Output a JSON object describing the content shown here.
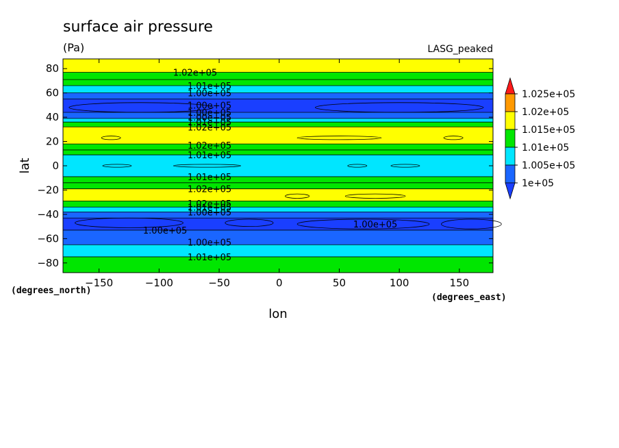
{
  "chart_data": {
    "type": "heatmap",
    "title": "surface air pressure",
    "units": "(Pa)",
    "model": "LASG_peaked",
    "xlabel": "lon",
    "ylabel": "lat",
    "x_units": "(degrees_east)",
    "y_units": "(degrees_north)",
    "xlim": [
      -180,
      178
    ],
    "ylim": [
      -88,
      88
    ],
    "x_ticks": [
      -150,
      -100,
      -50,
      0,
      50,
      100,
      150
    ],
    "x_tick_labels": [
      "−150",
      "−100",
      "−50",
      "0",
      "50",
      "100",
      "150"
    ],
    "y_ticks": [
      80,
      60,
      40,
      20,
      0,
      -20,
      -40,
      -60,
      -80
    ],
    "y_tick_labels": [
      "80",
      "60",
      "40",
      "20",
      "0",
      "−20",
      "−40",
      "−60",
      "−80"
    ],
    "levels": [
      100000,
      100500,
      101000,
      101500,
      102000,
      102500
    ],
    "colorbar": {
      "labels": [
        "1.025e+05",
        "1.02e+05",
        "1.015e+05",
        "1.01e+05",
        "1.005e+05",
        "1e+05"
      ],
      "colors": [
        "#ff1a1a",
        "#ff9900",
        "#ffff00",
        "#00e600",
        "#00e6ff",
        "#1a66ff",
        "#1a3fff"
      ]
    },
    "bands": [
      {
        "lat_top": 88,
        "lat_bottom": 77,
        "value": 101500
      },
      {
        "lat_top": 77,
        "lat_bottom": 71,
        "value": 101000
      },
      {
        "lat_top": 71,
        "lat_bottom": 66,
        "value": 101000
      },
      {
        "lat_top": 66,
        "lat_bottom": 60,
        "value": 100500
      },
      {
        "lat_top": 60,
        "lat_bottom": 55,
        "value": 100000
      },
      {
        "lat_top": 55,
        "lat_bottom": 44,
        "value": 99900
      },
      {
        "lat_top": 44,
        "lat_bottom": 39,
        "value": 100000
      },
      {
        "lat_top": 39,
        "lat_bottom": 36,
        "value": 100500
      },
      {
        "lat_top": 36,
        "lat_bottom": 32,
        "value": 101000
      },
      {
        "lat_top": 32,
        "lat_bottom": 18,
        "value": 101500
      },
      {
        "lat_top": 18,
        "lat_bottom": 13,
        "value": 101000
      },
      {
        "lat_top": 13,
        "lat_bottom": 9,
        "value": 101000
      },
      {
        "lat_top": 9,
        "lat_bottom": -9,
        "value": 100500
      },
      {
        "lat_top": -9,
        "lat_bottom": -14,
        "value": 101000
      },
      {
        "lat_top": -14,
        "lat_bottom": -19,
        "value": 101000
      },
      {
        "lat_top": -19,
        "lat_bottom": -29,
        "value": 101500
      },
      {
        "lat_top": -29,
        "lat_bottom": -34,
        "value": 101000
      },
      {
        "lat_top": -34,
        "lat_bottom": -38,
        "value": 100500
      },
      {
        "lat_top": -38,
        "lat_bottom": -43,
        "value": 100000
      },
      {
        "lat_top": -43,
        "lat_bottom": -53,
        "value": 99900
      },
      {
        "lat_top": -53,
        "lat_bottom": -65,
        "value": 100000
      },
      {
        "lat_top": -65,
        "lat_bottom": -75,
        "value": 100500
      },
      {
        "lat_top": -75,
        "lat_bottom": -88,
        "value": 101000
      }
    ],
    "contour_lines_lat": [
      77,
      71,
      66,
      60,
      55,
      44,
      39,
      36,
      32,
      18,
      13,
      9,
      -9,
      -14,
      -19,
      -29,
      -34,
      -38,
      -43,
      -53,
      -65,
      -75
    ],
    "blobs": [
      {
        "lon": -135,
        "lat": 0,
        "rlon": 12,
        "rlat": 1.2
      },
      {
        "lon": -60,
        "lat": 0,
        "rlon": 28,
        "rlat": 1.2
      },
      {
        "lon": 65,
        "lat": 0,
        "rlon": 8,
        "rlat": 1.2
      },
      {
        "lon": 105,
        "lat": 0,
        "rlon": 12,
        "rlat": 1.2
      },
      {
        "lon": -140,
        "lat": 23,
        "rlon": 8,
        "rlat": 1.5
      },
      {
        "lon": 50,
        "lat": 23,
        "rlon": 35,
        "rlat": 1.5
      },
      {
        "lon": 145,
        "lat": 23,
        "rlon": 8,
        "rlat": 1.5
      },
      {
        "lon": 15,
        "lat": -25,
        "rlon": 10,
        "rlat": 1.8
      },
      {
        "lon": 80,
        "lat": -25,
        "rlon": 25,
        "rlat": 1.8
      },
      {
        "lon": -125,
        "lat": -47,
        "rlon": 45,
        "rlat": 4
      },
      {
        "lon": -25,
        "lat": -47,
        "rlon": 20,
        "rlat": 3
      },
      {
        "lon": 70,
        "lat": -48,
        "rlon": 55,
        "rlat": 4
      },
      {
        "lon": 160,
        "lat": -48,
        "rlon": 25,
        "rlat": 4
      },
      {
        "lon": -115,
        "lat": 48,
        "rlon": 60,
        "rlat": 4
      },
      {
        "lon": 100,
        "lat": 48,
        "rlon": 70,
        "rlat": 4
      }
    ],
    "contour_labels": [
      {
        "text": "1.02e+05",
        "lon": -70,
        "lat": 77
      },
      {
        "text": "1.01e+05",
        "lon": -58,
        "lat": 66
      },
      {
        "text": "1.00e+05",
        "lon": -58,
        "lat": 60
      },
      {
        "text": "1.00e+05",
        "lon": -58,
        "lat": 50
      },
      {
        "text": "1.00e+05",
        "lon": -58,
        "lat": 44
      },
      {
        "text": "1.00e+05",
        "lon": -58,
        "lat": 40
      },
      {
        "text": "1.01e+05",
        "lon": -58,
        "lat": 36
      },
      {
        "text": "1.02e+05",
        "lon": -58,
        "lat": 32
      },
      {
        "text": "1.02e+05",
        "lon": -58,
        "lat": 17
      },
      {
        "text": "1.01e+05",
        "lon": -58,
        "lat": 9
      },
      {
        "text": "1.01e+05",
        "lon": -58,
        "lat": -9
      },
      {
        "text": "1.02e+05",
        "lon": -58,
        "lat": -19
      },
      {
        "text": "1.02e+05",
        "lon": -58,
        "lat": -31
      },
      {
        "text": "1.01e+05",
        "lon": -58,
        "lat": -34
      },
      {
        "text": "1.00e+05",
        "lon": -58,
        "lat": -38
      },
      {
        "text": "1.00e+05",
        "lon": -95,
        "lat": -53
      },
      {
        "text": "1.00e+05",
        "lon": 80,
        "lat": -48
      },
      {
        "text": "1.00e+05",
        "lon": -58,
        "lat": -63
      },
      {
        "text": "1.01e+05",
        "lon": -58,
        "lat": -75
      }
    ]
  }
}
